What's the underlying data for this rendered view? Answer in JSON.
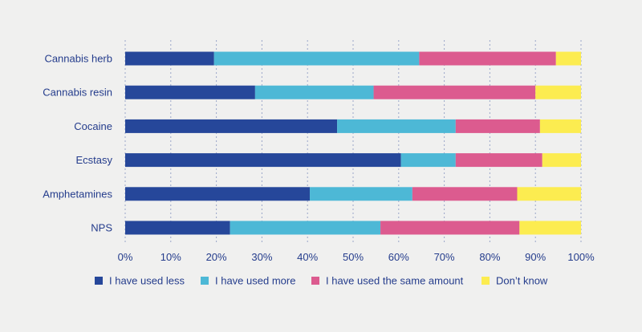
{
  "chart_data": {
    "type": "bar",
    "orientation": "horizontal",
    "stacked": true,
    "categories": [
      "Cannabis herb",
      "Cannabis resin",
      "Cocaine",
      "Ecstasy",
      "Amphetamines",
      "NPS"
    ],
    "series": [
      {
        "name": "I have used less",
        "color": "#26479a",
        "values": [
          19.5,
          28.5,
          46.5,
          60.5,
          40.5,
          23
        ]
      },
      {
        "name": "I have used more",
        "color": "#4db8d6",
        "values": [
          45,
          26,
          26,
          12,
          22.5,
          33
        ]
      },
      {
        "name": "I have used the same amount",
        "color": "#dc5b8f",
        "values": [
          30,
          35.5,
          18.5,
          19,
          23,
          30.5
        ]
      },
      {
        "name": "Don’t know",
        "color": "#fcec50",
        "values": [
          5.5,
          10,
          9,
          8.5,
          14,
          13.5
        ]
      }
    ],
    "xlim": [
      0,
      100
    ],
    "xticks": [
      0,
      10,
      20,
      30,
      40,
      50,
      60,
      70,
      80,
      90,
      100
    ],
    "tick_suffix": "%",
    "grid": "vertical dashed",
    "legend_position": "bottom",
    "title": "",
    "xlabel": "",
    "ylabel": ""
  }
}
